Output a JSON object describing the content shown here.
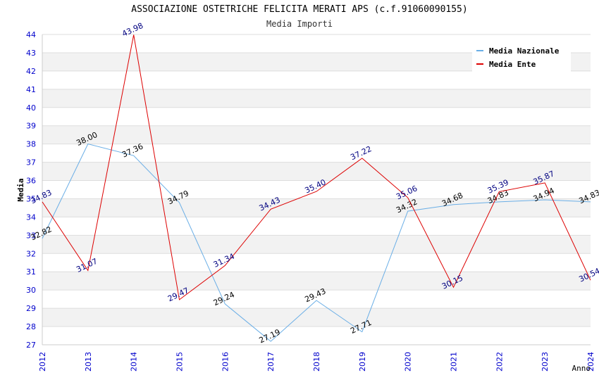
{
  "chart_data": {
    "type": "line",
    "title": "ASSOCIAZIONE OSTETRICHE FELICITA MERATI APS (c.f.91060090155)",
    "subtitle": "Media Importi",
    "xlabel": "Anno",
    "ylabel": "Media",
    "ylim": [
      27,
      44
    ],
    "yticks": [
      27,
      28,
      29,
      30,
      31,
      32,
      33,
      34,
      35,
      36,
      37,
      38,
      39,
      40,
      41,
      42,
      43,
      44
    ],
    "categories": [
      "2012",
      "2013",
      "2014",
      "2015",
      "2016",
      "2017",
      "2018",
      "2019",
      "2020",
      "2021",
      "2022",
      "2023",
      "2024"
    ],
    "series": [
      {
        "name": "Media Nazionale",
        "color": "#6aaee6",
        "label_color": "#000000",
        "values": [
          32.82,
          38.0,
          37.36,
          34.79,
          29.24,
          27.19,
          29.43,
          27.71,
          34.32,
          34.68,
          34.83,
          34.94,
          34.83
        ],
        "labels": [
          "32.82",
          "38.00",
          "37.36",
          "34.79",
          "29.24",
          "27.19",
          "29.43",
          "27.71",
          "34.32",
          "34.68",
          "34.83",
          "34.94",
          "34.83"
        ]
      },
      {
        "name": "Media Ente",
        "color": "#dd0000",
        "label_color": "#000080",
        "values": [
          34.83,
          31.07,
          43.98,
          29.47,
          31.34,
          34.43,
          35.4,
          37.22,
          35.06,
          30.15,
          35.39,
          35.87,
          30.54
        ],
        "labels": [
          "34.83",
          "31.07",
          "43.98",
          "29.47",
          "31.34",
          "34.43",
          "35.40",
          "37.22",
          "35.06",
          "30.15",
          "35.39",
          "35.87",
          "30.54"
        ]
      }
    ],
    "grid": "horizontal alternating bands",
    "legend_position": "top-right"
  }
}
